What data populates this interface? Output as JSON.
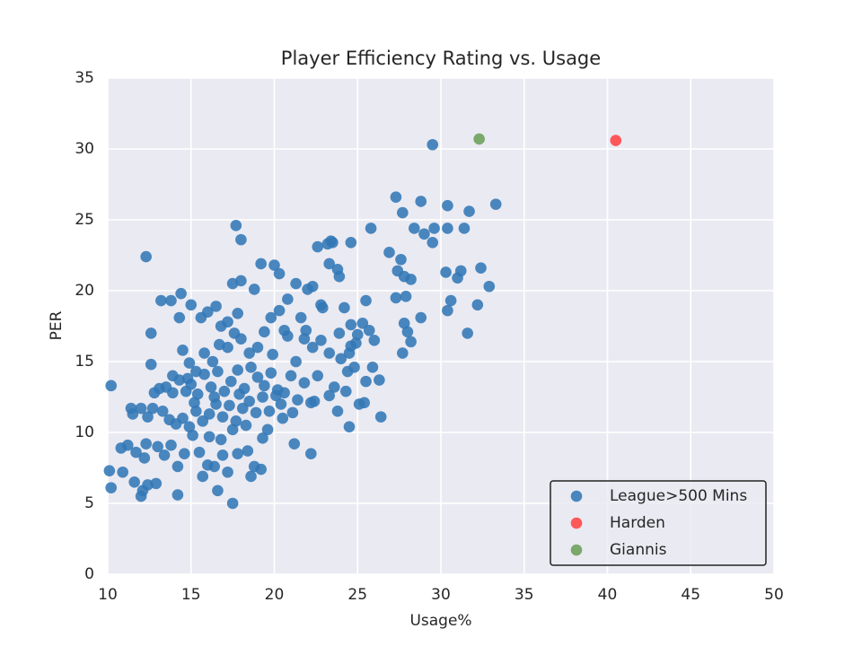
{
  "chart_data": {
    "type": "scatter",
    "title": "Player Efficiency Rating vs. Usage",
    "x_label": "Usage%",
    "y_label": "PER",
    "xlim": [
      10,
      50
    ],
    "xticks": [
      10,
      15,
      20,
      25,
      30,
      35,
      40,
      45,
      50
    ],
    "ylim": [
      0,
      35
    ],
    "yticks": [
      0,
      5,
      10,
      15,
      20,
      25,
      30,
      35
    ],
    "grid": true,
    "legend": "lower right",
    "series": [
      {
        "name": "League>500 Mins",
        "color": "#3278b6",
        "x": [
          29.5,
          10.2,
          12.3,
          17.7,
          18.0,
          17.5,
          10.2,
          33.3,
          32.9,
          32.4,
          27.3,
          28.8,
          30.4,
          31.7,
          31.4,
          30.4,
          29.6,
          29.5,
          25.8,
          24.6,
          23.4,
          22.6,
          27.7,
          28.4,
          29.0,
          26.9,
          27.6,
          27.4,
          27.8,
          28.2,
          30.3,
          31.0,
          31.2,
          30.6,
          30.4,
          32.2,
          31.6,
          27.3,
          27.9,
          28.8,
          28.0,
          27.8,
          28.2,
          27.7,
          26.4,
          24.5,
          22.2,
          21.2,
          19.2,
          18.6,
          16.6,
          15.7,
          14.2,
          12.0,
          12.1,
          12.4,
          12.9,
          11.6,
          10.1,
          10.9,
          10.8,
          11.2,
          11.7,
          12.2,
          12.3,
          13.0,
          13.4,
          13.8,
          14.2,
          14.6,
          15.1,
          15.5,
          16.0,
          16.4,
          16.9,
          17.2,
          17.8,
          18.4,
          18.8,
          19.3,
          11.4,
          11.5,
          12.0,
          12.4,
          12.7,
          13.1,
          13.5,
          13.9,
          14.3,
          14.7,
          12.8,
          13.3,
          13.7,
          14.1,
          14.5,
          14.9,
          15.3,
          15.7,
          16.1,
          16.5,
          16.9,
          17.3,
          17.7,
          18.1,
          18.5,
          18.9,
          19.3,
          19.7,
          20.1,
          20.5,
          15.0,
          15.4,
          15.8,
          16.2,
          16.6,
          17.0,
          17.4,
          17.8,
          18.2,
          18.6,
          19.0,
          19.4,
          19.8,
          20.2,
          20.6,
          21.0,
          21.4,
          21.8,
          22.2,
          22.6,
          13.2,
          13.8,
          14.4,
          14.3,
          15.0,
          15.6,
          16.0,
          16.5,
          16.8,
          17.2,
          17.5,
          17.8,
          18.0,
          18.8,
          19.2,
          20.0,
          20.3,
          20.8,
          21.3,
          22.0,
          22.3,
          22.8,
          23.2,
          23.5,
          23.3,
          23.8,
          23.9,
          24.2,
          24.6,
          25.3,
          25.5,
          25.7,
          26.0,
          26.3,
          25.4,
          25.5,
          24.9,
          24.6,
          24.0,
          23.3,
          22.8,
          22.3,
          21.8,
          21.3,
          20.8,
          20.3,
          19.8,
          19.4,
          19.0,
          18.5,
          18.0,
          17.6,
          17.2,
          16.7,
          16.3,
          15.8,
          15.3,
          14.9,
          14.5,
          12.6,
          12.6,
          15.2,
          16.1,
          16.8,
          17.5,
          18.3,
          19.6,
          20.4,
          21.1,
          22.4,
          23.3,
          23.8,
          24.3,
          24.8,
          25.1,
          25.9,
          24.4,
          23.6,
          21.9,
          22.9,
          23.9,
          24.5,
          25.0,
          21.6,
          20.6,
          19.9,
          13.9,
          14.8,
          16.4,
          17.9
        ],
        "values": [
          30.3,
          13.3,
          22.4,
          24.6,
          23.6,
          5.0,
          6.1,
          26.1,
          20.3,
          21.6,
          26.6,
          26.3,
          26.0,
          25.6,
          24.4,
          24.4,
          24.4,
          23.4,
          24.4,
          23.4,
          23.5,
          23.1,
          25.5,
          24.4,
          24.0,
          22.7,
          22.2,
          21.4,
          21.0,
          20.8,
          21.3,
          20.9,
          21.4,
          19.3,
          18.6,
          19.0,
          17.0,
          19.5,
          19.6,
          18.1,
          17.1,
          17.7,
          16.4,
          15.6,
          11.1,
          10.4,
          8.5,
          9.2,
          7.4,
          6.9,
          5.9,
          6.9,
          5.6,
          5.5,
          5.9,
          6.3,
          6.4,
          6.5,
          7.3,
          7.2,
          8.9,
          9.1,
          8.6,
          8.2,
          9.2,
          9.0,
          8.4,
          9.1,
          7.6,
          8.5,
          9.8,
          8.6,
          7.7,
          7.6,
          8.4,
          7.2,
          8.5,
          8.7,
          7.6,
          9.6,
          11.7,
          11.3,
          11.7,
          11.1,
          11.7,
          13.1,
          13.2,
          12.8,
          13.7,
          12.9,
          12.8,
          11.5,
          10.9,
          10.6,
          11.0,
          10.4,
          11.5,
          10.8,
          11.3,
          12.0,
          11.1,
          11.9,
          10.8,
          11.7,
          12.2,
          11.4,
          12.5,
          11.5,
          12.6,
          11.0,
          13.4,
          12.7,
          14.1,
          13.2,
          14.3,
          12.9,
          13.6,
          14.4,
          13.1,
          14.6,
          13.9,
          13.3,
          14.2,
          13.0,
          12.8,
          14.0,
          12.3,
          13.5,
          12.1,
          14.0,
          19.3,
          19.3,
          19.8,
          18.1,
          19.0,
          18.1,
          18.5,
          18.9,
          17.5,
          17.8,
          20.5,
          18.4,
          20.7,
          20.1,
          21.9,
          21.8,
          21.2,
          19.4,
          20.5,
          20.1,
          20.3,
          19.0,
          23.3,
          23.4,
          21.9,
          21.5,
          21.0,
          18.8,
          17.6,
          17.7,
          19.3,
          17.2,
          16.5,
          13.7,
          12.1,
          13.6,
          16.3,
          16.1,
          15.2,
          15.6,
          16.5,
          16.0,
          16.6,
          15.0,
          16.8,
          18.6,
          18.1,
          17.1,
          16.0,
          15.6,
          16.6,
          17.0,
          16.0,
          16.2,
          15.0,
          15.6,
          14.3,
          14.9,
          15.8,
          14.8,
          17.0,
          12.1,
          9.7,
          9.5,
          10.2,
          10.5,
          10.2,
          12.0,
          11.4,
          12.2,
          12.6,
          11.5,
          12.9,
          14.6,
          12.0,
          14.6,
          14.3,
          13.2,
          17.2,
          18.8,
          17.0,
          15.6,
          16.9,
          18.1,
          17.2,
          15.5,
          14.0,
          13.8,
          12.5,
          12.7
        ]
      },
      {
        "name": "Harden",
        "color": "#ff4343",
        "x": [
          40.5
        ],
        "values": [
          30.6
        ]
      },
      {
        "name": "Giannis",
        "color": "#6a9f58",
        "x": [
          32.3
        ],
        "values": [
          30.7
        ]
      }
    ]
  }
}
